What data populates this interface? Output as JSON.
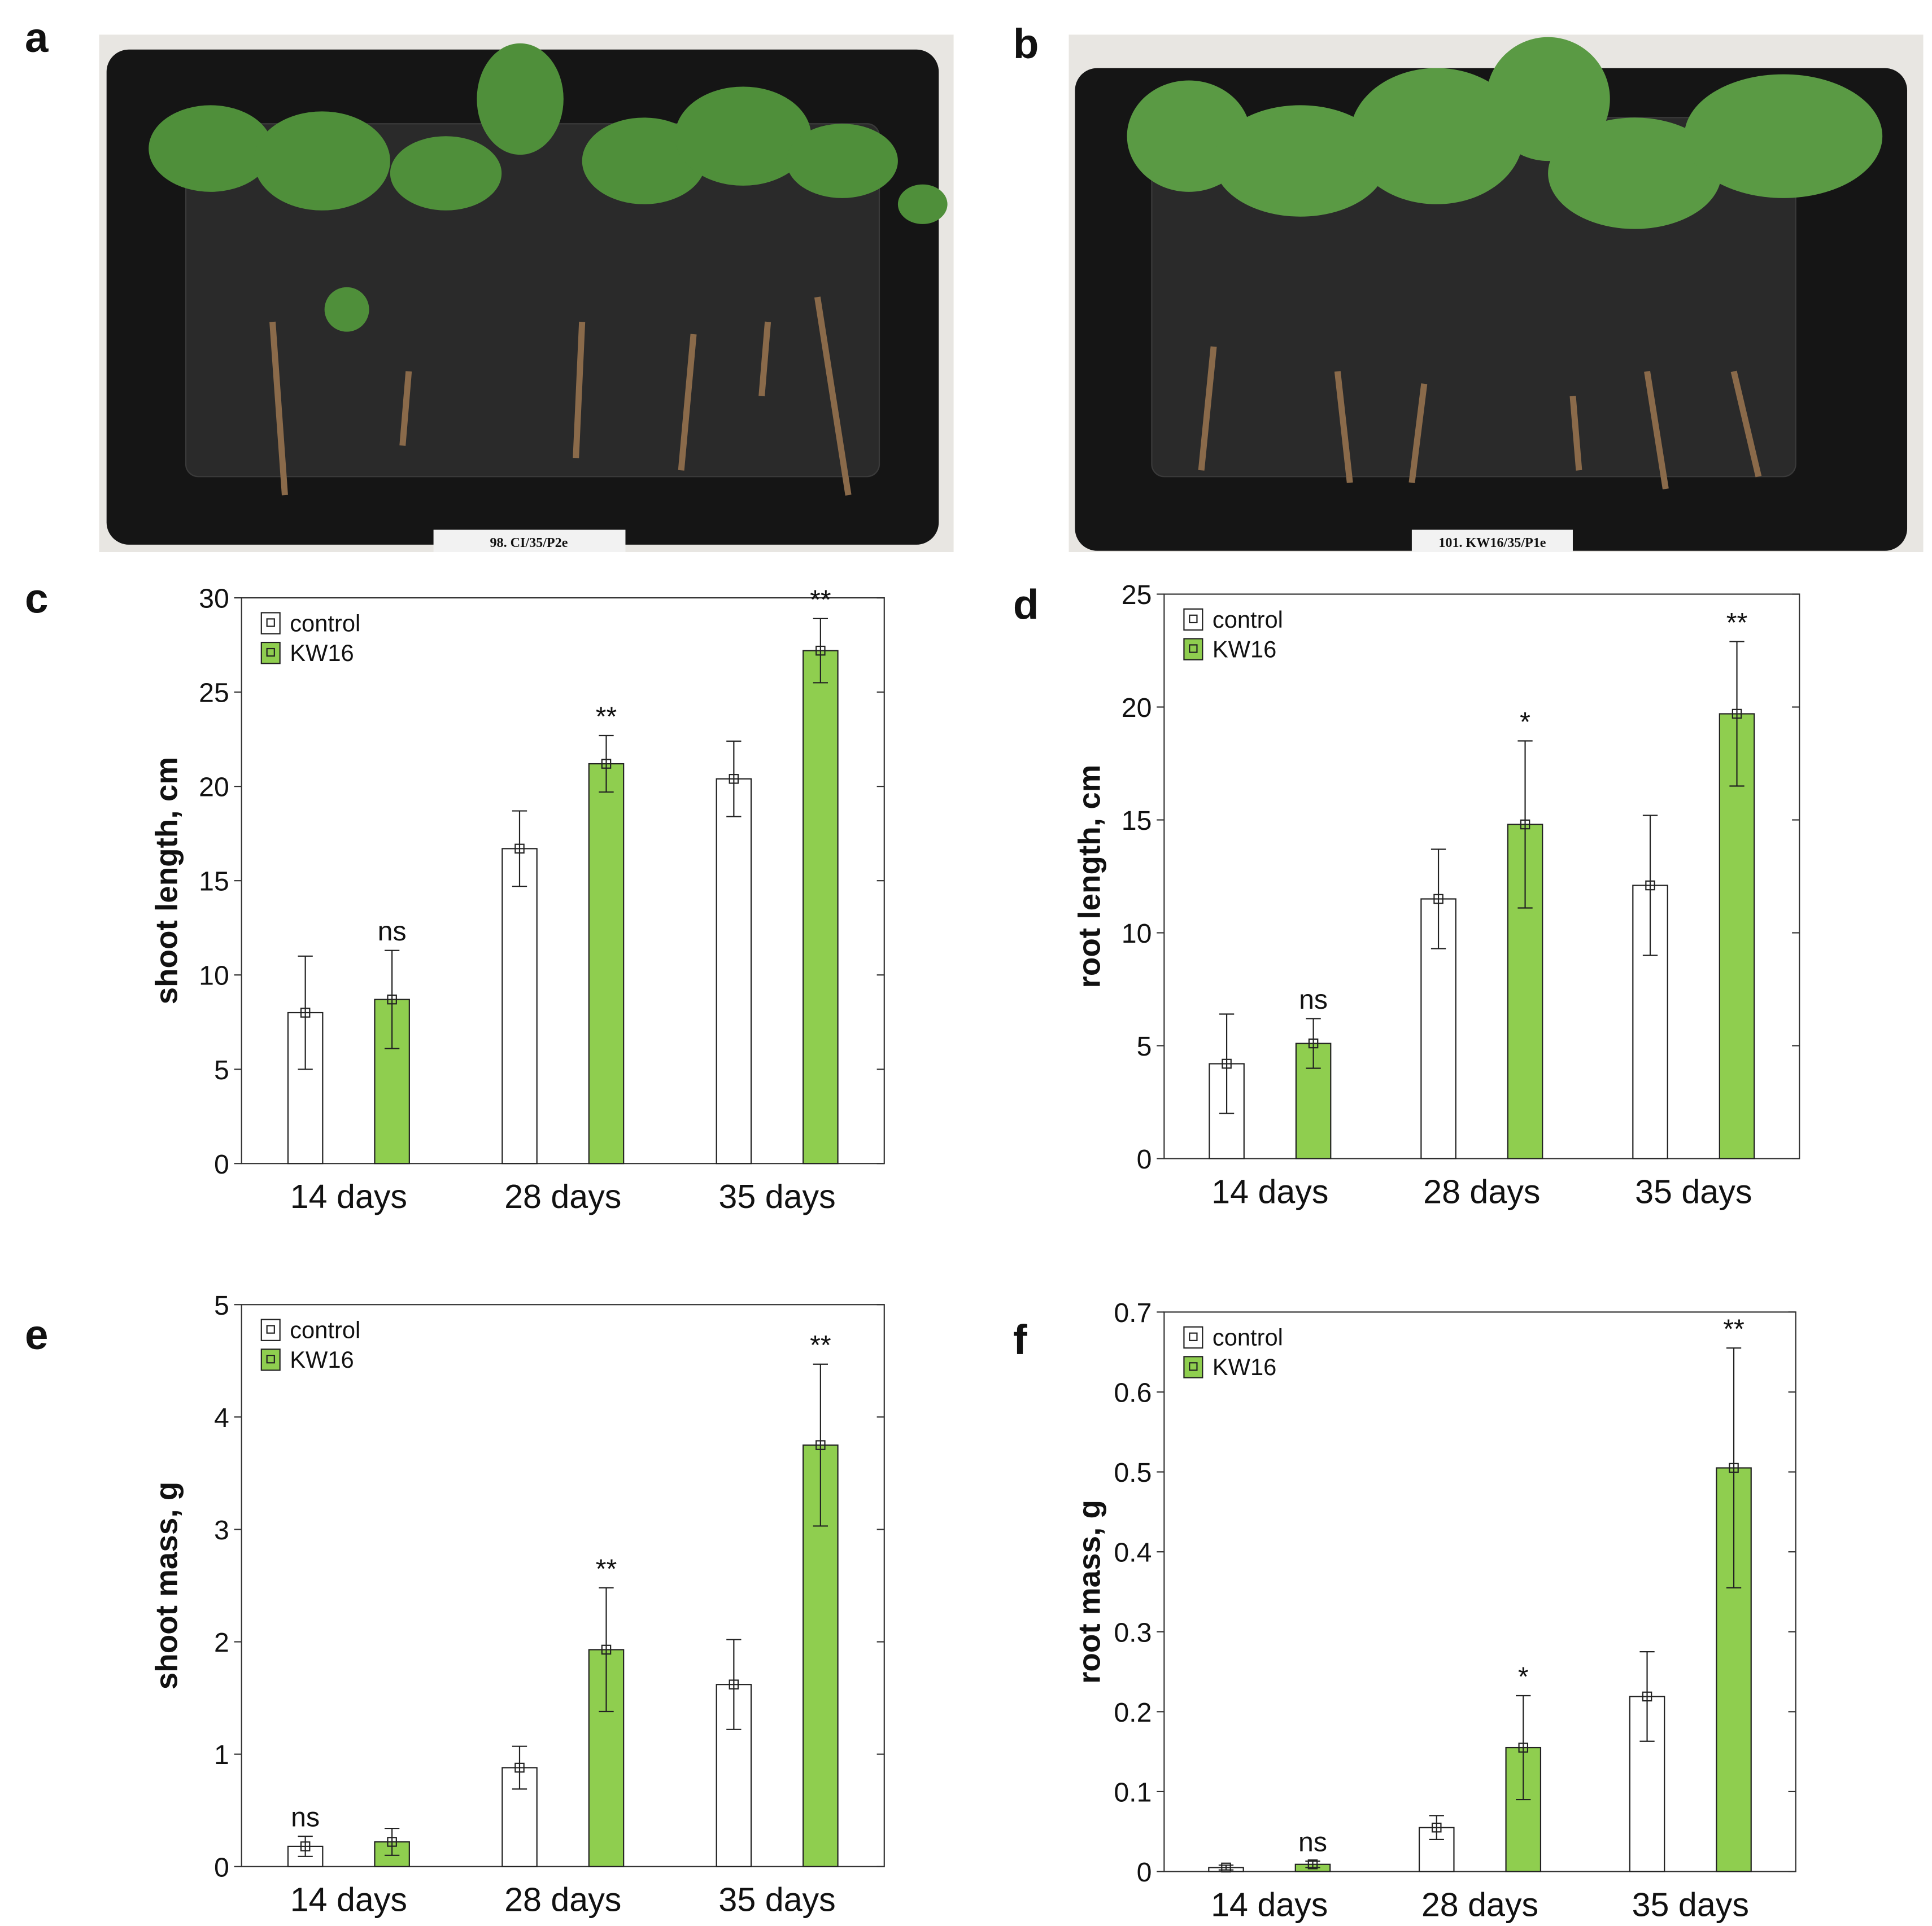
{
  "photos": [
    {
      "panel_label": "a",
      "tag": "98. CI/35/P2e"
    },
    {
      "panel_label": "b",
      "tag": "101. KW16/35/P1e"
    }
  ],
  "chart_data": [
    {
      "type": "bar",
      "panel_label": "c",
      "ylabel": "shoot length, cm",
      "categories": [
        "14 days",
        "28 days",
        "35 days"
      ],
      "ylim": [
        0,
        30
      ],
      "yticks": [
        0,
        5,
        10,
        15,
        20,
        25,
        30
      ],
      "series": [
        {
          "name": "control",
          "color": "#ffffff",
          "values": [
            8.0,
            16.7,
            20.4
          ],
          "errors": [
            3.0,
            2.0,
            2.0
          ]
        },
        {
          "name": "KW16",
          "color": "#8fce4f",
          "values": [
            8.7,
            21.2,
            27.2
          ],
          "errors": [
            2.6,
            1.5,
            1.7
          ],
          "significance": [
            "ns",
            "**",
            "**"
          ]
        }
      ]
    },
    {
      "type": "bar",
      "panel_label": "d",
      "ylabel": "root length, cm",
      "categories": [
        "14 days",
        "28 days",
        "35 days"
      ],
      "ylim": [
        0,
        25
      ],
      "yticks": [
        0,
        5,
        10,
        15,
        20,
        25
      ],
      "series": [
        {
          "name": "control",
          "color": "#ffffff",
          "values": [
            4.2,
            11.5,
            12.1
          ],
          "errors": [
            2.2,
            2.2,
            3.1
          ]
        },
        {
          "name": "KW16",
          "color": "#8fce4f",
          "values": [
            5.1,
            14.8,
            19.7
          ],
          "errors": [
            1.1,
            3.7,
            3.2
          ],
          "significance": [
            "ns",
            "*",
            "**"
          ]
        }
      ]
    },
    {
      "type": "bar",
      "panel_label": "e",
      "ylabel": "shoot mass, g",
      "categories": [
        "14 days",
        "28 days",
        "35 days"
      ],
      "ylim": [
        0,
        5
      ],
      "yticks": [
        0,
        1,
        2,
        3,
        4,
        5
      ],
      "series": [
        {
          "name": "control",
          "color": "#ffffff",
          "values": [
            0.18,
            0.88,
            1.62
          ],
          "errors": [
            0.09,
            0.19,
            0.4
          ],
          "significance": [
            "ns",
            null,
            null
          ]
        },
        {
          "name": "KW16",
          "color": "#8fce4f",
          "values": [
            0.22,
            1.93,
            3.75
          ],
          "errors": [
            0.12,
            0.55,
            0.72
          ],
          "significance": [
            null,
            "**",
            "**"
          ]
        }
      ]
    },
    {
      "type": "bar",
      "panel_label": "f",
      "ylabel": "root mass, g",
      "categories": [
        "14 days",
        "28 days",
        "35 days"
      ],
      "ylim": [
        0,
        0.7
      ],
      "yticks": [
        0,
        0.1,
        0.2,
        0.3,
        0.4,
        0.5,
        0.6,
        0.7
      ],
      "series": [
        {
          "name": "control",
          "color": "#ffffff",
          "values": [
            0.005,
            0.055,
            0.219
          ],
          "errors": [
            0.003,
            0.015,
            0.056
          ]
        },
        {
          "name": "KW16",
          "color": "#8fce4f",
          "values": [
            0.009,
            0.155,
            0.505
          ],
          "errors": [
            0.004,
            0.065,
            0.15
          ],
          "significance": [
            "ns",
            "*",
            "**"
          ]
        }
      ]
    }
  ]
}
